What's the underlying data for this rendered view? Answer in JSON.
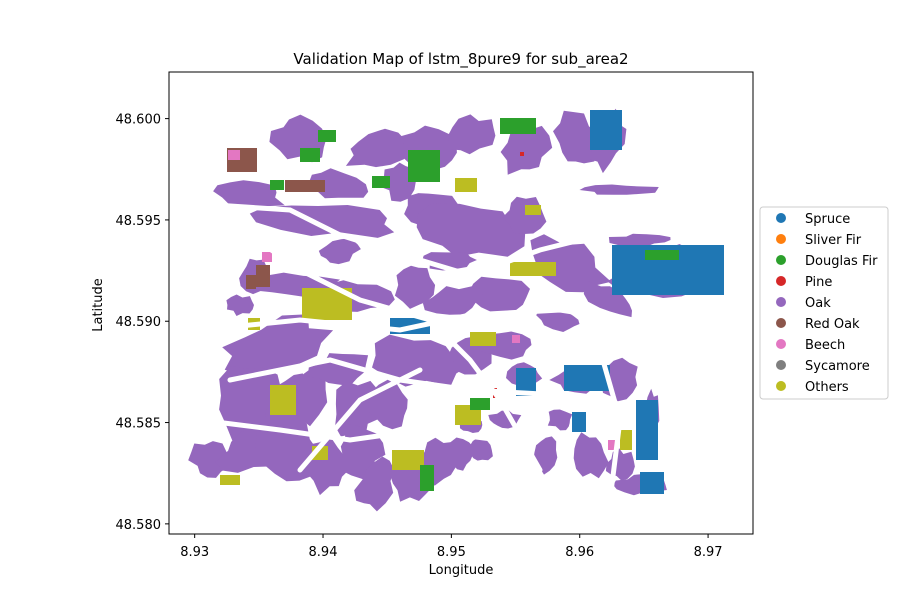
{
  "chart_data": {
    "type": "scatter",
    "title": "Validation Map of lstm_8pure9 for sub_area2",
    "xlabel": "Longitude",
    "ylabel": "Latitude",
    "xlim": [
      8.928,
      8.9735
    ],
    "ylim": [
      48.5795,
      48.6023
    ],
    "xticks": [
      "8.93",
      "8.94",
      "8.95",
      "8.96",
      "8.97"
    ],
    "xtick_values": [
      8.93,
      8.94,
      8.95,
      8.96,
      8.97
    ],
    "yticks": [
      "48.580",
      "48.585",
      "48.590",
      "48.595",
      "48.600"
    ],
    "ytick_values": [
      48.58,
      48.585,
      48.59,
      48.595,
      48.6
    ],
    "grid": false,
    "legend_position": "right",
    "series": [
      {
        "name": "Spruce",
        "color": "#1f77b4"
      },
      {
        "name": "Sliver Fir",
        "color": "#ff7f0e"
      },
      {
        "name": "Douglas Fir",
        "color": "#2ca02c"
      },
      {
        "name": "Pine",
        "color": "#d62728"
      },
      {
        "name": "Oak",
        "color": "#9467bd"
      },
      {
        "name": "Red Oak",
        "color": "#8c564b"
      },
      {
        "name": "Beech",
        "color": "#e377c2"
      },
      {
        "name": "Sycamore",
        "color": "#7f7f7f"
      },
      {
        "name": "Others",
        "color": "#bcbd22"
      }
    ]
  }
}
